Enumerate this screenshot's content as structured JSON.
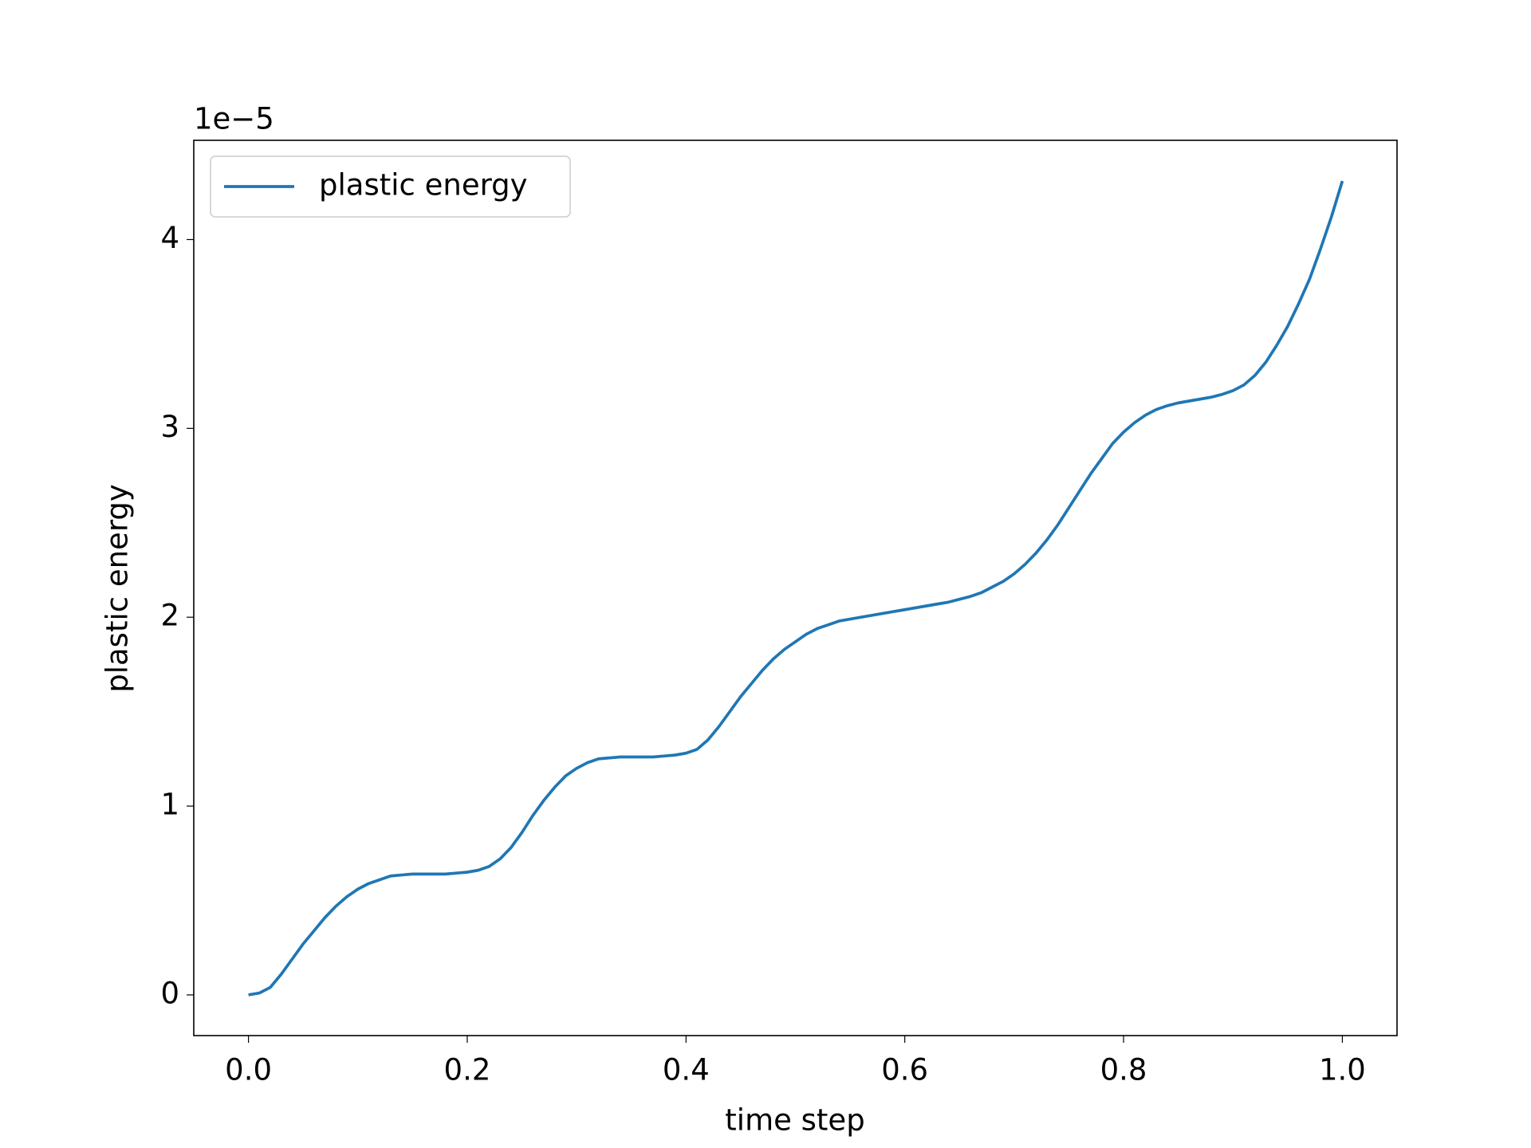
{
  "chart_data": {
    "type": "line",
    "xlabel": "time step",
    "ylabel": "plastic energy",
    "y_offset_text": "1e−5",
    "x": [
      0,
      0.01,
      0.02,
      0.03,
      0.04,
      0.05,
      0.06,
      0.07,
      0.08,
      0.09,
      0.1,
      0.11,
      0.12,
      0.13,
      0.14,
      0.15,
      0.16,
      0.17,
      0.18,
      0.19,
      0.2,
      0.21,
      0.22,
      0.23,
      0.24,
      0.25,
      0.26,
      0.27,
      0.28,
      0.29,
      0.3,
      0.31,
      0.32,
      0.33,
      0.34,
      0.35,
      0.36,
      0.37,
      0.38,
      0.39,
      0.4,
      0.41,
      0.42,
      0.43,
      0.44,
      0.45,
      0.46,
      0.47,
      0.48,
      0.49,
      0.5,
      0.51,
      0.52,
      0.53,
      0.54,
      0.55,
      0.56,
      0.57,
      0.58,
      0.59,
      0.6,
      0.61,
      0.62,
      0.63,
      0.64,
      0.65,
      0.66,
      0.67,
      0.68,
      0.69,
      0.7,
      0.71,
      0.72,
      0.73,
      0.74,
      0.75,
      0.76,
      0.77,
      0.78,
      0.79,
      0.8,
      0.81,
      0.82,
      0.83,
      0.84,
      0.85,
      0.86,
      0.87,
      0.88,
      0.89,
      0.9,
      0.91,
      0.92,
      0.93,
      0.94,
      0.95,
      0.96,
      0.97,
      0.98,
      0.99,
      1.0
    ],
    "series": [
      {
        "name": "plastic energy",
        "color": "#1f77b4",
        "values": [
          0,
          0.01,
          0.04,
          0.11,
          0.19,
          0.27,
          0.34,
          0.41,
          0.47,
          0.52,
          0.56,
          0.59,
          0.61,
          0.63,
          0.635,
          0.64,
          0.64,
          0.64,
          0.64,
          0.645,
          0.65,
          0.66,
          0.68,
          0.72,
          0.78,
          0.86,
          0.95,
          1.03,
          1.1,
          1.16,
          1.2,
          1.23,
          1.25,
          1.255,
          1.26,
          1.26,
          1.26,
          1.26,
          1.265,
          1.27,
          1.28,
          1.3,
          1.35,
          1.42,
          1.5,
          1.58,
          1.65,
          1.72,
          1.78,
          1.83,
          1.87,
          1.91,
          1.94,
          1.96,
          1.98,
          1.99,
          2.0,
          2.01,
          2.02,
          2.03,
          2.04,
          2.05,
          2.06,
          2.07,
          2.08,
          2.095,
          2.11,
          2.13,
          2.16,
          2.19,
          2.23,
          2.28,
          2.34,
          2.41,
          2.49,
          2.58,
          2.67,
          2.76,
          2.84,
          2.92,
          2.98,
          3.03,
          3.07,
          3.1,
          3.12,
          3.135,
          3.145,
          3.155,
          3.165,
          3.18,
          3.2,
          3.23,
          3.28,
          3.35,
          3.44,
          3.54,
          3.66,
          3.79,
          3.95,
          4.12,
          4.31
        ]
      }
    ],
    "xlim": [
      -0.05,
      1.05
    ],
    "xticks": [
      {
        "value": 0,
        "label": "0.0"
      },
      {
        "value": 0.2,
        "label": "0.2"
      },
      {
        "value": 0.4,
        "label": "0.4"
      },
      {
        "value": 0.6,
        "label": "0.6"
      },
      {
        "value": 0.8,
        "label": "0.8"
      },
      {
        "value": 1,
        "label": "1.0"
      }
    ],
    "ylim": [
      -0.2155,
      4.5255
    ],
    "yticks": [
      0,
      1,
      2,
      3,
      4
    ],
    "grid": false,
    "legend": "upper left"
  }
}
